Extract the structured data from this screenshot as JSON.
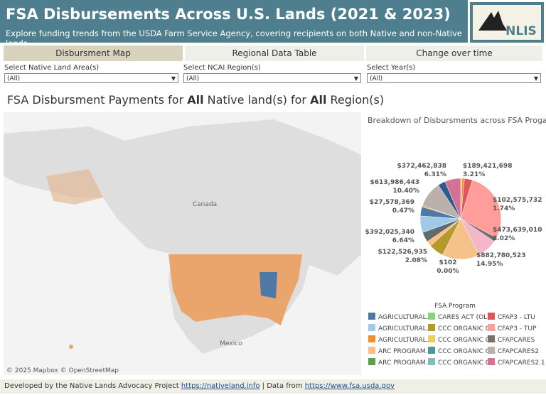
{
  "header": {
    "title": "FSA Disbursements Across U.S. Lands (2021 & 2023)",
    "subtitle": "Explore funding trends from the USDA Farm Service Agency, covering recipients on both Native and non-Native lands.",
    "logo": "NLIS"
  },
  "tabs": [
    "Disbursment Map",
    "Regional Data Table",
    "Change over time"
  ],
  "filters": [
    {
      "label": "Select Native Land Area(s)",
      "value": "(All)"
    },
    {
      "label": "Select NCAI Region(s)",
      "value": "(All)"
    },
    {
      "label": "Select Year(s)",
      "value": "(All)"
    }
  ],
  "sheet_title": [
    "FSA Disbursment Payments for ",
    "All",
    " Native land(s) for ",
    "All",
    " Region(s)"
  ],
  "map": {
    "labels": [
      "Canada",
      "Mexico"
    ],
    "attribution": "© 2025 Mapbox © OpenStreetMap"
  },
  "chart_data": {
    "type": "pie",
    "title": "Breakdown of Disbursments across FSA Progams",
    "values": [
      0.5,
      1.0,
      3.21,
      28,
      1.74,
      8.02,
      14.95,
      6,
      0.0,
      2.08,
      4,
      6.64,
      3.68,
      0.47,
      10.4,
      3,
      6.31
    ],
    "value_labels": [
      null,
      null,
      "3.21%",
      null,
      "1.74%",
      "8.02%",
      "14.95%",
      null,
      "0.00%",
      "2.08%",
      null,
      "6.64%",
      null,
      "0.47%",
      "10.40%",
      null,
      "6.31%"
    ],
    "amount_labels": [
      null,
      null,
      "$189,421,698",
      null,
      "$102,575,732",
      "$473,639,010",
      "$882,780,523",
      null,
      "$102",
      "$122,526,935",
      null,
      "$392,025,340",
      null,
      "$27,578,369",
      "$613,986,443",
      null,
      "$372,462,838"
    ],
    "colors": [
      "#f1ce63",
      "#f28e2b",
      "#e15759",
      "#ff9d9a",
      "#79706e",
      "#f4b6c8",
      "#f5c18a",
      "#b6992d",
      "#f1ce63",
      "#ffbe7d",
      "#5f6b6d",
      "#a0cbe8",
      "#4e79a7",
      "#f28e2b",
      "#bab0ac",
      "#2f5b8a",
      "#d37295"
    ],
    "legend": {
      "title": "FSA Program",
      "items": [
        {
          "name": "AGRICULTURAL...",
          "color": "#4e79a7"
        },
        {
          "name": "AGRICULTURAL...",
          "color": "#a0cbe8"
        },
        {
          "name": "AGRICULTURAL...",
          "color": "#f28e2b"
        },
        {
          "name": "ARC PROGRAM...",
          "color": "#ffbe7d"
        },
        {
          "name": "ARC PROGRAM...",
          "color": "#59a14f"
        },
        {
          "name": "CARES ACT (OLP)",
          "color": "#8cd17d"
        },
        {
          "name": "CCC ORGANIC C...",
          "color": "#b6992d"
        },
        {
          "name": "CCC ORGANIC C...",
          "color": "#f1ce63"
        },
        {
          "name": "CCC ORGANIC C...",
          "color": "#499894"
        },
        {
          "name": "CCC ORGANIC C...",
          "color": "#86bcb6"
        },
        {
          "name": "CFAP3 - LTU",
          "color": "#e15759"
        },
        {
          "name": "CFAP3 - TUP",
          "color": "#ff9d9a"
        },
        {
          "name": "CFAPCARES",
          "color": "#79706e"
        },
        {
          "name": "CFAPCARES2",
          "color": "#bab0ac"
        },
        {
          "name": "CFAPCARES2.1",
          "color": "#d37295"
        }
      ]
    }
  },
  "footer": [
    "Developed by the Native Lands Advocacy Project ",
    "https://nativeland.info",
    " | Data from ",
    "https://www.fsa.usda.gov"
  ]
}
